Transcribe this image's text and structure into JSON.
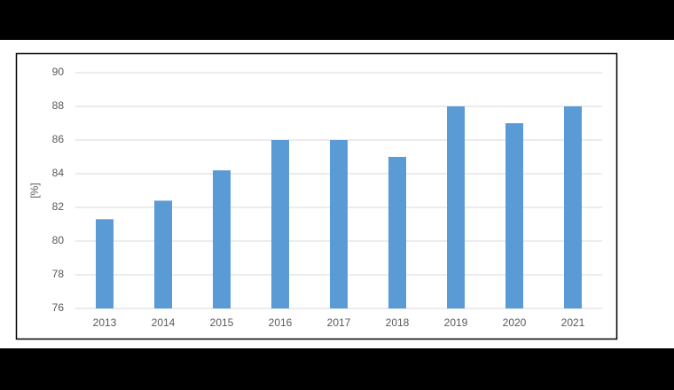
{
  "chart_data": {
    "type": "bar",
    "y_label": "[%]",
    "categories": [
      "2013",
      "2014",
      "2015",
      "2016",
      "2017",
      "2018",
      "2019",
      "2020",
      "2021"
    ],
    "values": [
      81.3,
      82.4,
      84.2,
      86,
      86,
      85,
      88,
      87,
      88
    ],
    "color": "#5b9bd5",
    "ylim": [
      76,
      90
    ],
    "yticks": [
      76,
      78,
      80,
      82,
      84,
      86,
      88,
      90
    ],
    "grid": true
  }
}
